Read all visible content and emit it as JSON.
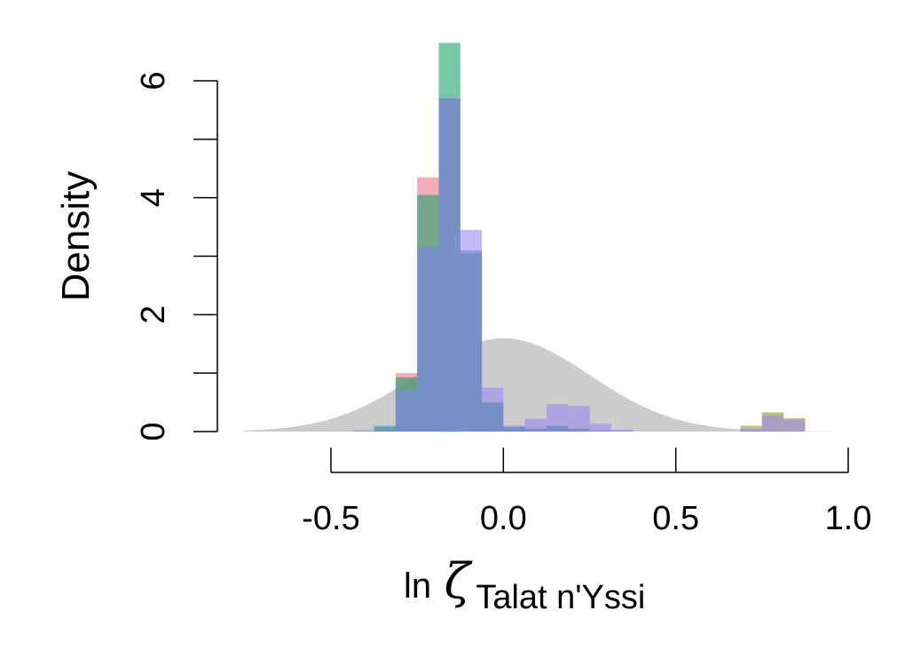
{
  "chart_data": {
    "type": "histogram",
    "ylabel": "Density",
    "xlabel_prefix": "ln",
    "xlabel_symbol": "ζ",
    "xlabel_subscript": "Talat n'Yssi",
    "xlim": [
      -0.75,
      0.95
    ],
    "ylim": [
      0,
      6.7
    ],
    "x_ticks": [
      -0.5,
      0.0,
      0.5,
      1.0
    ],
    "x_tick_labels": [
      "-0.5",
      "0.0",
      "0.5",
      "1.0"
    ],
    "y_ticks": [
      0,
      1,
      2,
      3,
      4,
      5,
      6
    ],
    "y_tick_labels": [
      "0",
      "",
      "2",
      "",
      "4",
      "",
      "6"
    ],
    "grid": false,
    "prior": {
      "type": "normal",
      "mean": 0.0,
      "sd": 0.25,
      "color": "#cccccc"
    },
    "bin_width": 0.0625,
    "series": [
      {
        "color": "#e8788a",
        "bins": [
          {
            "x0": -0.3125,
            "y": 1.0
          },
          {
            "x0": -0.25,
            "y": 4.35
          },
          {
            "x0": -0.1875,
            "y": 5.7
          },
          {
            "x0": -0.125,
            "y": 3.05
          },
          {
            "x0": -0.0625,
            "y": 0.5
          },
          {
            "x0": 0.0,
            "y": 0.08
          },
          {
            "x0": 0.0625,
            "y": 0.05
          },
          {
            "x0": 0.125,
            "y": 0.08
          },
          {
            "x0": 0.1875,
            "y": 0.05
          }
        ]
      },
      {
        "color": "#999933",
        "bins": [
          {
            "x0": 0.6875,
            "y": 0.1
          },
          {
            "x0": 0.75,
            "y": 0.33
          },
          {
            "x0": 0.8125,
            "y": 0.23
          }
        ]
      },
      {
        "color": "#20a070",
        "bins": [
          {
            "x0": -0.375,
            "y": 0.08
          },
          {
            "x0": -0.3125,
            "y": 0.93
          },
          {
            "x0": -0.25,
            "y": 4.05
          },
          {
            "x0": -0.1875,
            "y": 6.65
          },
          {
            "x0": -0.125,
            "y": 3.05
          },
          {
            "x0": -0.0625,
            "y": 0.5
          },
          {
            "x0": 0.0,
            "y": 0.08
          },
          {
            "x0": 0.0625,
            "y": 0.05
          },
          {
            "x0": 0.125,
            "y": 0.1
          },
          {
            "x0": 0.1875,
            "y": 0.05
          }
        ]
      },
      {
        "color": "#9988ee",
        "bins": [
          {
            "x0": -0.3125,
            "y": 0.7
          },
          {
            "x0": -0.25,
            "y": 3.15
          },
          {
            "x0": -0.1875,
            "y": 5.7
          },
          {
            "x0": -0.125,
            "y": 3.45
          },
          {
            "x0": -0.0625,
            "y": 0.75
          },
          {
            "x0": 0.0,
            "y": 0.1
          },
          {
            "x0": 0.0625,
            "y": 0.22
          },
          {
            "x0": 0.125,
            "y": 0.47
          },
          {
            "x0": 0.1875,
            "y": 0.44
          },
          {
            "x0": 0.25,
            "y": 0.13
          },
          {
            "x0": 0.3125,
            "y": 0.03
          },
          {
            "x0": 0.6875,
            "y": 0.05
          },
          {
            "x0": 0.75,
            "y": 0.28
          },
          {
            "x0": 0.8125,
            "y": 0.2
          }
        ]
      },
      {
        "color": "#6a8fc7",
        "bins": [
          {
            "x0": -0.4375,
            "y": 0.02
          },
          {
            "x0": -0.375,
            "y": 0.1
          },
          {
            "x0": -0.3125,
            "y": 0.7
          },
          {
            "x0": -0.25,
            "y": 3.15
          },
          {
            "x0": -0.1875,
            "y": 5.7
          },
          {
            "x0": -0.125,
            "y": 3.1
          },
          {
            "x0": -0.0625,
            "y": 0.48
          },
          {
            "x0": 0.0,
            "y": 0.06
          },
          {
            "x0": 0.0625,
            "y": 0.04
          },
          {
            "x0": 0.125,
            "y": 0.08
          },
          {
            "x0": 0.1875,
            "y": 0.04
          },
          {
            "x0": 0.25,
            "y": 0.02
          },
          {
            "x0": 0.3125,
            "y": 0.01
          }
        ]
      }
    ]
  }
}
